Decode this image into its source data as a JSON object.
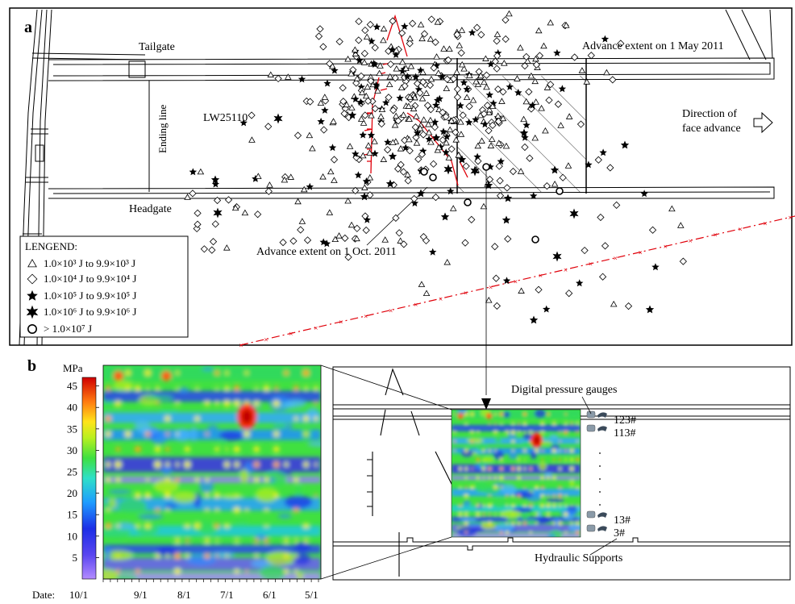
{
  "panel_a": {
    "label": "a",
    "tailgate": "Tailgate",
    "headgate": "Headgate",
    "panel_name": "LW25110",
    "ending_line": "Ending line",
    "advance_may": "Advance extent on 1 May 2011",
    "advance_oct": "Advance extent on 1 Oct. 2011",
    "direction_line1": "Direction of",
    "direction_line2": "face advance",
    "legend": {
      "title": "LENGEND:",
      "items": [
        {
          "symbol": "triangle",
          "text": "1.0×10³ J to 9.9×10³ J"
        },
        {
          "symbol": "diamond",
          "text": "1.0×10⁴ J to 9.9×10⁴ J"
        },
        {
          "symbol": "star5",
          "text": "1.0×10⁵ J to 9.9×10⁵ J"
        },
        {
          "symbol": "star6",
          "text": "1.0×10⁶ J to 9.9×10⁶ J"
        },
        {
          "symbol": "circle",
          "text": "> 1.0×10⁷ J"
        }
      ]
    }
  },
  "panel_b": {
    "label": "b",
    "unit": "MPa",
    "yticks": [
      "45",
      "40",
      "35",
      "30",
      "25",
      "20",
      "15",
      "10",
      "5"
    ],
    "date_prefix": "Date:",
    "xticks": [
      "10/1",
      "9/1",
      "8/1",
      "7/1",
      "6/1",
      "5/1"
    ],
    "gauges_label": "Digital pressure gauges",
    "supports_label": "Hydraulic Supports",
    "support_ids": [
      "123#",
      "113#",
      "13#",
      "3#"
    ],
    "colorscale": [
      "#8a5cff",
      "#2a3ee8",
      "#1f8fff",
      "#22d8e0",
      "#33dd55",
      "#a8f025",
      "#f0f020",
      "#ffaa10",
      "#ff3010",
      "#cc0000"
    ]
  }
}
